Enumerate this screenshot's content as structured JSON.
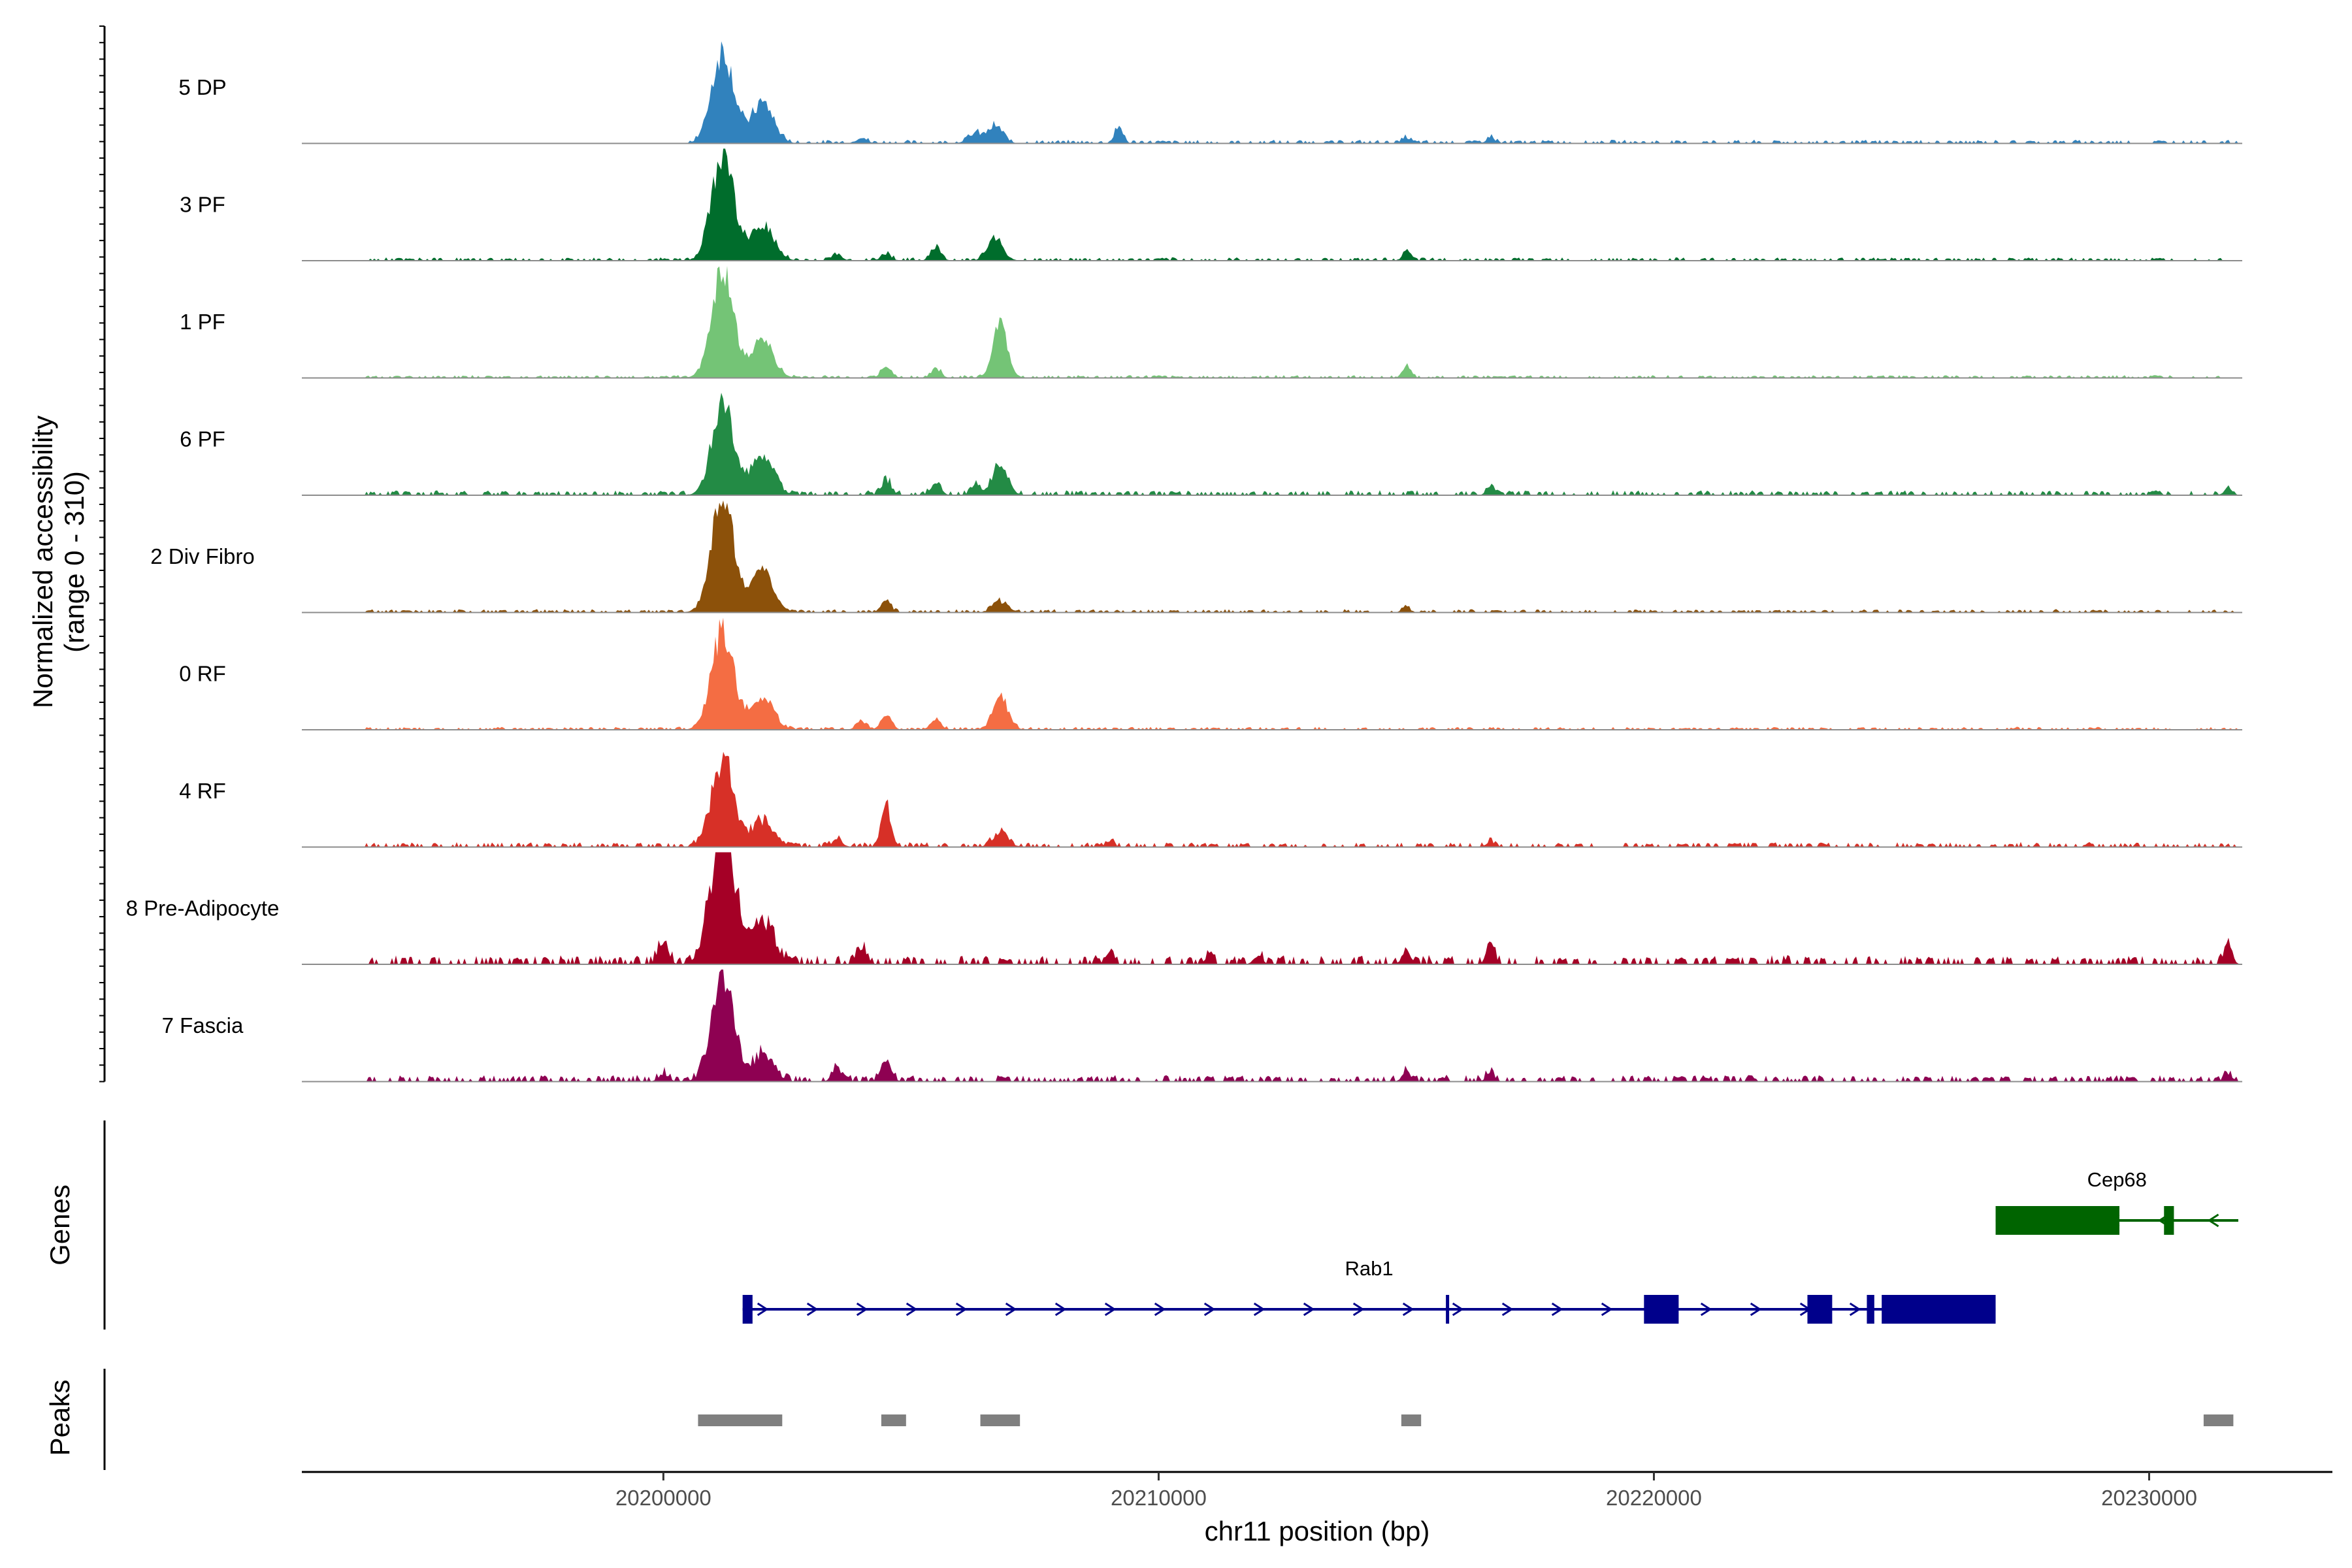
{
  "chart_data": {
    "type": "area",
    "title": "",
    "y_axis_title_line1": "Normalized accessibility",
    "y_axis_title_line2": "(range 0 - 310)",
    "y_range": [
      0,
      310
    ],
    "xlabel": "chr11 position (bp)",
    "x_range": [
      20192700,
      20233700
    ],
    "x_ticks": [
      20200000,
      20210000,
      20220000,
      20230000
    ],
    "x_tick_labels": [
      "20200000",
      "20210000",
      "20220000",
      "20230000"
    ],
    "tracks": [
      {
        "name": "5 DP",
        "color": "#3182bd",
        "peaks": [
          [
            20201200,
            260,
            220
          ],
          [
            20202000,
            110,
            220
          ],
          [
            20206700,
            45,
            150
          ],
          [
            20206300,
            25,
            150
          ],
          [
            20209200,
            50,
            80
          ],
          [
            20216700,
            18,
            80
          ],
          [
            20215000,
            15,
            80
          ],
          [
            20204000,
            15,
            100
          ]
        ],
        "noise": 9,
        "noise_range": [
          20200500,
          20231800
        ]
      },
      {
        "name": "3 PF",
        "color": "#006d2c",
        "peaks": [
          [
            20201200,
            300,
            220
          ],
          [
            20202000,
            100,
            220
          ],
          [
            20206700,
            60,
            150
          ],
          [
            20205500,
            35,
            100
          ],
          [
            20204500,
            20,
            100
          ],
          [
            20215000,
            25,
            80
          ],
          [
            20203500,
            15,
            100
          ]
        ],
        "noise": 8,
        "noise_range": [
          20194000,
          20231800
        ]
      },
      {
        "name": "1 PF",
        "color": "#74c476",
        "peaks": [
          [
            20201200,
            300,
            220
          ],
          [
            20202000,
            100,
            220
          ],
          [
            20206800,
            140,
            150
          ],
          [
            20204500,
            30,
            100
          ],
          [
            20205500,
            25,
            100
          ],
          [
            20215000,
            30,
            80
          ]
        ],
        "noise": 7,
        "noise_range": [
          20194000,
          20231800
        ]
      },
      {
        "name": "6 PF",
        "color": "#238b45",
        "peaks": [
          [
            20201200,
            240,
            220
          ],
          [
            20202000,
            120,
            220
          ],
          [
            20206800,
            80,
            150
          ],
          [
            20204500,
            40,
            100
          ],
          [
            20205500,
            30,
            100
          ],
          [
            20206300,
            25,
            100
          ],
          [
            20216700,
            20,
            80
          ],
          [
            20231600,
            18,
            80
          ]
        ],
        "noise": 12,
        "noise_range": [
          20194000,
          20231800
        ]
      },
      {
        "name": "2 Div Fibro",
        "color": "#8c510a",
        "peaks": [
          [
            20201200,
            320,
            220
          ],
          [
            20202000,
            110,
            220
          ],
          [
            20204500,
            30,
            100
          ],
          [
            20206800,
            30,
            150
          ],
          [
            20215000,
            15,
            80
          ]
        ],
        "noise": 8,
        "noise_range": [
          20194000,
          20231800
        ]
      },
      {
        "name": "0 RF",
        "color": "#f46d43",
        "peaks": [
          [
            20201200,
            280,
            220
          ],
          [
            20202000,
            90,
            220
          ],
          [
            20206800,
            90,
            150
          ],
          [
            20204500,
            45,
            100
          ],
          [
            20204000,
            25,
            100
          ],
          [
            20205500,
            25,
            100
          ]
        ],
        "noise": 7,
        "noise_range": [
          20194000,
          20231800
        ]
      },
      {
        "name": "4 RF",
        "color": "#d73027",
        "peaks": [
          [
            20201200,
            240,
            220
          ],
          [
            20202000,
            70,
            220
          ],
          [
            20204500,
            110,
            100
          ],
          [
            20206800,
            40,
            150
          ],
          [
            20203500,
            20,
            100
          ],
          [
            20209000,
            15,
            80
          ],
          [
            20216700,
            15,
            80
          ]
        ],
        "noise": 12,
        "noise_range": [
          20194000,
          20231800
        ]
      },
      {
        "name": "8 Pre-Adipocyte",
        "color": "#a50026",
        "peaks": [
          [
            20201200,
            380,
            240
          ],
          [
            20202000,
            120,
            220
          ],
          [
            20200000,
            60,
            100
          ],
          [
            20204000,
            45,
            100
          ],
          [
            20215000,
            45,
            80
          ],
          [
            20216700,
            55,
            80
          ],
          [
            20231600,
            50,
            80
          ],
          [
            20209000,
            25,
            80
          ],
          [
            20211000,
            20,
            80
          ],
          [
            20212000,
            25,
            80
          ]
        ],
        "noise": 22,
        "noise_range": [
          20194000,
          20231800
        ]
      },
      {
        "name": "7 Fascia",
        "color": "#8e0152",
        "peaks": [
          [
            20201200,
            290,
            220
          ],
          [
            20202000,
            70,
            220
          ],
          [
            20204500,
            60,
            100
          ],
          [
            20203500,
            30,
            100
          ],
          [
            20200000,
            20,
            100
          ],
          [
            20215000,
            30,
            80
          ],
          [
            20216700,
            25,
            80
          ],
          [
            20231600,
            20,
            80
          ]
        ],
        "noise": 16,
        "noise_range": [
          20194000,
          20231800
        ]
      }
    ],
    "genes_panel_label": "Genes",
    "genes": [
      {
        "name": "Cep68",
        "strand": "-",
        "color": "#006400",
        "start": 20226900,
        "end": 20231800,
        "exons": [
          [
            20226900,
            20229400
          ],
          [
            20230300,
            20230500
          ]
        ]
      },
      {
        "name": "Rab1",
        "strand": "+",
        "color": "#00008b",
        "start": 20201600,
        "end": 20226900,
        "exons": [
          [
            20201600,
            20201800
          ],
          [
            20215800,
            20215850
          ],
          [
            20219800,
            20220500
          ],
          [
            20223100,
            20223600
          ],
          [
            20224300,
            20224450
          ],
          [
            20224600,
            20226900
          ]
        ]
      }
    ],
    "peaks_panel_label": "Peaks",
    "peaks_color": "#7f7f7f",
    "peak_regions": [
      [
        20200700,
        20202400
      ],
      [
        20204400,
        20204900
      ],
      [
        20206400,
        20207200
      ],
      [
        20214900,
        20215300
      ],
      [
        20231100,
        20231700
      ]
    ]
  }
}
